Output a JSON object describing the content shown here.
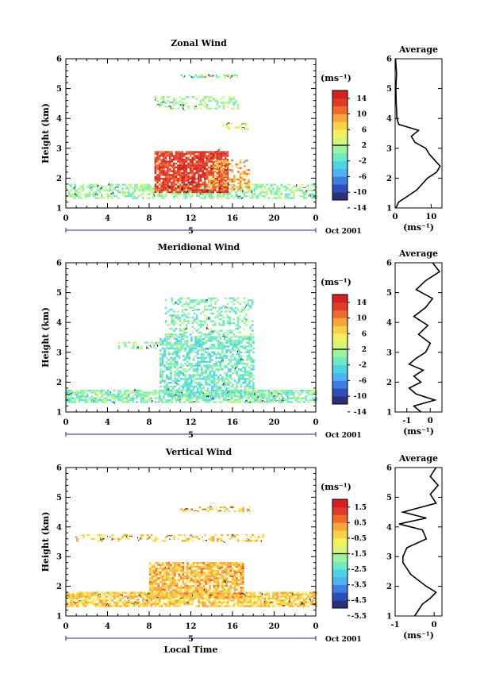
{
  "panels": [
    {
      "title": "Zonal Wind",
      "avg_title": "Average",
      "ylabel": "Height (km)",
      "y_ticks": [
        "1",
        "2",
        "3",
        "4",
        "5",
        "6"
      ],
      "x_ticks": [
        "0",
        "4",
        "8",
        "12",
        "16",
        "20",
        "0"
      ],
      "day_label": "5",
      "month_label": "Oct 2001",
      "cbar_unit": "(ms⁻¹)",
      "cbar_ticks": [
        "14",
        "10",
        "6",
        "2",
        "-2",
        "-6",
        "-10",
        "-14"
      ],
      "avg_xticks": [
        "0",
        "10"
      ],
      "avg_xlabel": "(ms⁻¹)"
    },
    {
      "title": "Meridional Wind",
      "avg_title": "Average",
      "ylabel": "Height (km)",
      "y_ticks": [
        "1",
        "2",
        "3",
        "4",
        "5",
        "6"
      ],
      "x_ticks": [
        "0",
        "4",
        "8",
        "12",
        "16",
        "20",
        "0"
      ],
      "day_label": "5",
      "month_label": "Oct 2001",
      "cbar_unit": "(ms⁻¹)",
      "cbar_ticks": [
        "14",
        "10",
        "6",
        "2",
        "-2",
        "-6",
        "-10",
        "-14"
      ],
      "avg_xticks": [
        "-1",
        "0"
      ],
      "avg_xlabel": "(ms⁻¹)"
    },
    {
      "title": "Vertical Wind",
      "avg_title": "Average",
      "ylabel": "Height (km)",
      "y_ticks": [
        "1",
        "2",
        "3",
        "4",
        "5",
        "6"
      ],
      "x_ticks": [
        "0",
        "4",
        "8",
        "12",
        "16",
        "20",
        "0"
      ],
      "day_label": "5",
      "month_label": "Oct 2001",
      "cbar_unit": "(ms⁻¹)",
      "cbar_ticks": [
        "1.5",
        "0.5",
        "-0.5",
        "-1.5",
        "-2.5",
        "-3.5",
        "-4.5",
        "-5.5"
      ],
      "avg_xticks": [
        "-1",
        "0"
      ],
      "avg_xlabel": "(ms⁻¹)"
    }
  ],
  "xlabel": "Local Time",
  "colorscale": [
    "#2b2f7a",
    "#2c4fb5",
    "#3f7ee0",
    "#4fb3f0",
    "#4fd2e3",
    "#6fe8c6",
    "#9bf2a0",
    "#d2f57a",
    "#f4f060",
    "#f9d149",
    "#f6a63a",
    "#ee6b2a",
    "#e03a2a",
    "#d42020"
  ],
  "chart_data": [
    {
      "type": "heatmap",
      "title": "Zonal Wind",
      "xlabel": "",
      "ylabel": "Height (km)",
      "xlim": [
        0,
        24
      ],
      "ylim": [
        1,
        6
      ],
      "colorbar_range": [
        -14,
        14
      ],
      "blobs": [
        {
          "t0": 0,
          "t1": 24,
          "h0": 1.3,
          "h1": 1.75,
          "v": -1,
          "fill": 0.55
        },
        {
          "t0": 8.5,
          "t1": 15.5,
          "h0": 1.5,
          "h1": 2.9,
          "v": 11,
          "fill": 0.85
        },
        {
          "t0": 13.5,
          "t1": 17.5,
          "h0": 1.6,
          "h1": 2.6,
          "v": 7,
          "fill": 0.45
        },
        {
          "t0": 8.5,
          "t1": 16.5,
          "h0": 4.3,
          "h1": 4.7,
          "v": -1,
          "fill": 0.35
        },
        {
          "t0": 11,
          "t1": 16.5,
          "h0": 5.35,
          "h1": 5.45,
          "v": -1,
          "fill": 0.35
        },
        {
          "t0": 15,
          "t1": 17.5,
          "h0": 3.6,
          "h1": 3.85,
          "v": 3,
          "fill": 0.35
        }
      ],
      "avg_profile": {
        "h": [
          1.0,
          1.2,
          1.4,
          1.6,
          1.8,
          2.0,
          2.2,
          2.4,
          2.6,
          2.8,
          3.0,
          3.2,
          3.4,
          3.6,
          3.8,
          4.0,
          4.5,
          5.0,
          5.5,
          6.0
        ],
        "v": [
          0.2,
          1.0,
          3.5,
          6.0,
          7.5,
          9.0,
          11.5,
          12.5,
          11.0,
          9.5,
          8.5,
          5.5,
          4.5,
          6.5,
          1.0,
          0.5,
          0.3,
          0.2,
          0.4,
          0.1
        ],
        "xlim": [
          0,
          13
        ]
      }
    },
    {
      "type": "heatmap",
      "title": "Meridional Wind",
      "xlabel": "",
      "ylabel": "Height (km)",
      "xlim": [
        0,
        24
      ],
      "ylim": [
        1,
        6
      ],
      "colorbar_range": [
        -14,
        14
      ],
      "blobs": [
        {
          "t0": 0,
          "t1": 24,
          "h0": 1.3,
          "h1": 1.7,
          "v": -2,
          "fill": 0.7
        },
        {
          "t0": 9,
          "t1": 18,
          "h0": 1.5,
          "h1": 3.5,
          "v": -3,
          "fill": 0.6
        },
        {
          "t0": 9.5,
          "t1": 18,
          "h0": 3.5,
          "h1": 4.8,
          "v": -2,
          "fill": 0.35
        },
        {
          "t0": 5,
          "t1": 9,
          "h0": 3.1,
          "h1": 3.3,
          "v": -1,
          "fill": 0.35
        }
      ],
      "avg_profile": {
        "h": [
          1.0,
          1.2,
          1.4,
          1.6,
          1.8,
          2.0,
          2.2,
          2.4,
          2.6,
          2.8,
          3.0,
          3.3,
          3.6,
          3.9,
          4.2,
          4.5,
          4.8,
          5.1,
          5.4,
          5.7,
          6.0
        ],
        "v": [
          -0.4,
          -0.7,
          0.2,
          -0.6,
          -0.9,
          -0.4,
          -0.7,
          -0.3,
          -0.9,
          -0.6,
          -0.2,
          0.0,
          -0.5,
          -0.1,
          -0.7,
          -0.2,
          0.1,
          -0.6,
          -0.2,
          0.4,
          0.1
        ],
        "xlim": [
          -1.5,
          0.5
        ]
      }
    },
    {
      "type": "heatmap",
      "title": "Vertical Wind",
      "xlabel": "Local Time",
      "ylabel": "Height (km)",
      "xlim": [
        0,
        24
      ],
      "ylim": [
        1,
        6
      ],
      "colorbar_range": [
        -6,
        2
      ],
      "blobs": [
        {
          "t0": 0,
          "t1": 24,
          "h0": 1.3,
          "h1": 1.75,
          "v": -0.5,
          "fill": 0.8
        },
        {
          "t0": 8,
          "t1": 17,
          "h0": 1.6,
          "h1": 2.8,
          "v": -0.3,
          "fill": 0.8
        },
        {
          "t0": 1,
          "t1": 19,
          "h0": 3.5,
          "h1": 3.7,
          "v": -0.5,
          "fill": 0.3
        },
        {
          "t0": 11,
          "t1": 18,
          "h0": 4.5,
          "h1": 4.65,
          "v": -0.5,
          "fill": 0.3
        }
      ],
      "avg_profile": {
        "h": [
          1.0,
          1.2,
          1.4,
          1.6,
          1.8,
          2.0,
          2.2,
          2.4,
          2.6,
          2.8,
          3.0,
          3.3,
          3.6,
          3.9,
          4.1,
          4.3,
          4.5,
          4.8,
          5.1,
          5.4,
          5.7,
          6.0
        ],
        "v": [
          -0.5,
          -0.4,
          -0.3,
          -0.1,
          0.05,
          -0.2,
          -0.4,
          -0.6,
          -0.7,
          -0.8,
          -0.8,
          -0.7,
          -0.2,
          -0.3,
          -0.9,
          -0.2,
          -0.8,
          0.05,
          -0.1,
          0.1,
          -0.1,
          0.05
        ],
        "xlim": [
          -1,
          0.2
        ]
      }
    }
  ]
}
